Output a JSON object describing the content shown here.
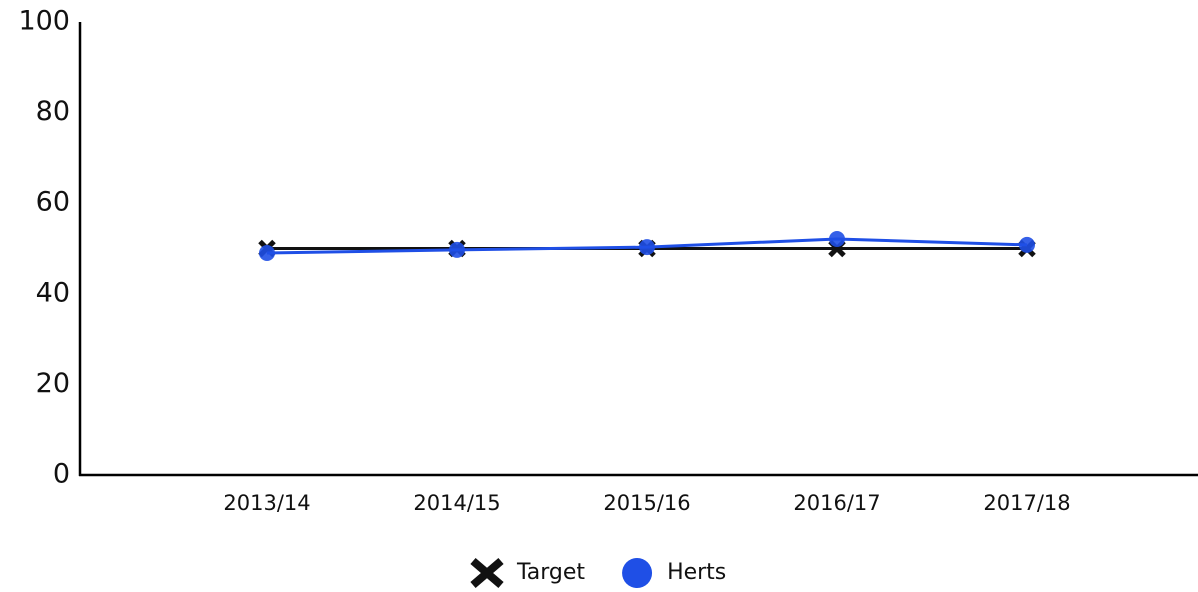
{
  "chart_data": {
    "type": "line",
    "categories": [
      "2013/14",
      "2014/15",
      "2015/16",
      "2016/17",
      "2017/18"
    ],
    "series": [
      {
        "name": "Target",
        "color": "#111111",
        "marker": "x",
        "values": [
          50,
          50,
          50,
          50,
          50
        ]
      },
      {
        "name": "Herts",
        "color": "#1f4fe6",
        "marker": "circle",
        "values": [
          49,
          49.7,
          50.3,
          52.1,
          50.8
        ]
      }
    ],
    "ylim": [
      0,
      100
    ],
    "yticks": [
      0,
      20,
      40,
      60,
      80,
      100
    ],
    "grid": false,
    "legend": "bottom"
  }
}
